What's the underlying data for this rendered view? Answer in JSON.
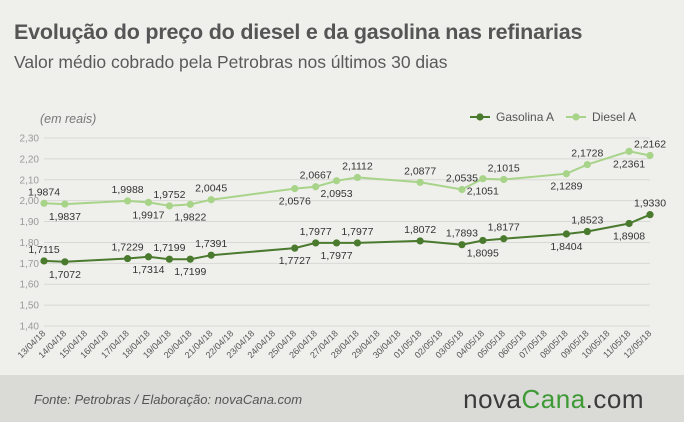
{
  "header": {
    "title": "Evolução do preço do diesel e da gasolina nas refinarias",
    "subtitle": "Valor médio cobrado pela Petrobras nos últimos 30 dias",
    "unit": "(em reais)"
  },
  "footer": {
    "source": "Fonte:  Petrobras  / Elaboração:  novaCana.com",
    "logo_prefix": "nova",
    "logo_accent": "Cana",
    "logo_suffix": ".com"
  },
  "chart_data": {
    "type": "line",
    "ylim": [
      1.4,
      2.3
    ],
    "yticks": [
      "1,40",
      "1,50",
      "1,60",
      "1,70",
      "1,80",
      "1,90",
      "2,00",
      "2,10",
      "2,20",
      "2,30"
    ],
    "grid": true,
    "legend_position": "top-right",
    "categories": [
      "13/04/18",
      "14/04/18",
      "15/04/18",
      "16/04/18",
      "17/04/18",
      "18/04/18",
      "19/04/18",
      "20/04/18",
      "21/04/18",
      "22/04/18",
      "23/04/18",
      "24/04/18",
      "25/04/18",
      "26/04/18",
      "27/04/18",
      "28/04/18",
      "29/04/18",
      "30/04/18",
      "01/05/18",
      "02/05/18",
      "03/05/18",
      "04/05/18",
      "05/05/18",
      "06/05/18",
      "07/05/18",
      "08/05/18",
      "09/05/18",
      "10/05/18",
      "11/05/18",
      "12/05/18"
    ],
    "series": [
      {
        "name": "Gasolina A",
        "color": "#4a7a2e",
        "points": [
          {
            "x": "13/04/18",
            "y": 1.7115,
            "label": "1,7115",
            "pos": "above"
          },
          {
            "x": "14/04/18",
            "y": 1.7072,
            "label": "1,7072",
            "pos": "below"
          },
          {
            "x": "17/04/18",
            "y": 1.7229,
            "label": "1,7229",
            "pos": "above"
          },
          {
            "x": "18/04/18",
            "y": 1.7314,
            "label": "1,7314",
            "pos": "below"
          },
          {
            "x": "19/04/18",
            "y": 1.7199,
            "label": "1,7199",
            "pos": "above"
          },
          {
            "x": "20/04/18",
            "y": 1.7199,
            "label": "1,7199",
            "pos": "below"
          },
          {
            "x": "21/04/18",
            "y": 1.7391,
            "label": "1,7391",
            "pos": "above"
          },
          {
            "x": "25/04/18",
            "y": 1.7727,
            "label": "1,7727",
            "pos": "below"
          },
          {
            "x": "26/04/18",
            "y": 1.7977,
            "label": "1,7977",
            "pos": "above"
          },
          {
            "x": "27/04/18",
            "y": 1.7977,
            "label": "1,7977",
            "pos": "below"
          },
          {
            "x": "28/04/18",
            "y": 1.7977,
            "label": "1,7977",
            "pos": "above"
          },
          {
            "x": "01/05/18",
            "y": 1.8072,
            "label": "1,8072",
            "pos": "above"
          },
          {
            "x": "03/05/18",
            "y": 1.7893,
            "label": "1,7893",
            "pos": "above"
          },
          {
            "x": "04/05/18",
            "y": 1.8095,
            "label": "1,8095",
            "pos": "below"
          },
          {
            "x": "05/05/18",
            "y": 1.8177,
            "label": "1,8177",
            "pos": "above"
          },
          {
            "x": "08/05/18",
            "y": 1.8404,
            "label": "1,8404",
            "pos": "below"
          },
          {
            "x": "09/05/18",
            "y": 1.8523,
            "label": "1,8523",
            "pos": "above"
          },
          {
            "x": "11/05/18",
            "y": 1.8908,
            "label": "1,8908",
            "pos": "below"
          },
          {
            "x": "12/05/18",
            "y": 1.933,
            "label": "1,9330",
            "pos": "above"
          }
        ]
      },
      {
        "name": "Diesel A",
        "color": "#a8d48a",
        "points": [
          {
            "x": "13/04/18",
            "y": 1.9874,
            "label": "1,9874",
            "pos": "above"
          },
          {
            "x": "14/04/18",
            "y": 1.9837,
            "label": "1,9837",
            "pos": "below"
          },
          {
            "x": "17/04/18",
            "y": 1.9988,
            "label": "1,9988",
            "pos": "above"
          },
          {
            "x": "18/04/18",
            "y": 1.9917,
            "label": "1,9917",
            "pos": "below"
          },
          {
            "x": "19/04/18",
            "y": 1.9752,
            "label": "1,9752",
            "pos": "above"
          },
          {
            "x": "20/04/18",
            "y": 1.9822,
            "label": "1,9822",
            "pos": "below"
          },
          {
            "x": "21/04/18",
            "y": 2.0045,
            "label": "2,0045",
            "pos": "above"
          },
          {
            "x": "25/04/18",
            "y": 2.0576,
            "label": "2,0576",
            "pos": "below"
          },
          {
            "x": "26/04/18",
            "y": 2.0667,
            "label": "2,0667",
            "pos": "above"
          },
          {
            "x": "27/04/18",
            "y": 2.0953,
            "label": "2,0953",
            "pos": "below"
          },
          {
            "x": "28/04/18",
            "y": 2.1112,
            "label": "2,1112",
            "pos": "above"
          },
          {
            "x": "01/05/18",
            "y": 2.0877,
            "label": "2,0877",
            "pos": "above"
          },
          {
            "x": "03/05/18",
            "y": 2.0535,
            "label": "2,0535",
            "pos": "above"
          },
          {
            "x": "04/05/18",
            "y": 2.1051,
            "label": "2,1051",
            "pos": "below"
          },
          {
            "x": "05/05/18",
            "y": 2.1015,
            "label": "2,1015",
            "pos": "above"
          },
          {
            "x": "08/05/18",
            "y": 2.1289,
            "label": "2,1289",
            "pos": "below"
          },
          {
            "x": "09/05/18",
            "y": 2.1728,
            "label": "2,1728",
            "pos": "above"
          },
          {
            "x": "11/05/18",
            "y": 2.2361,
            "label": "2,2361",
            "pos": "below"
          },
          {
            "x": "12/05/18",
            "y": 2.2162,
            "label": "2,2162",
            "pos": "above"
          }
        ]
      }
    ]
  }
}
